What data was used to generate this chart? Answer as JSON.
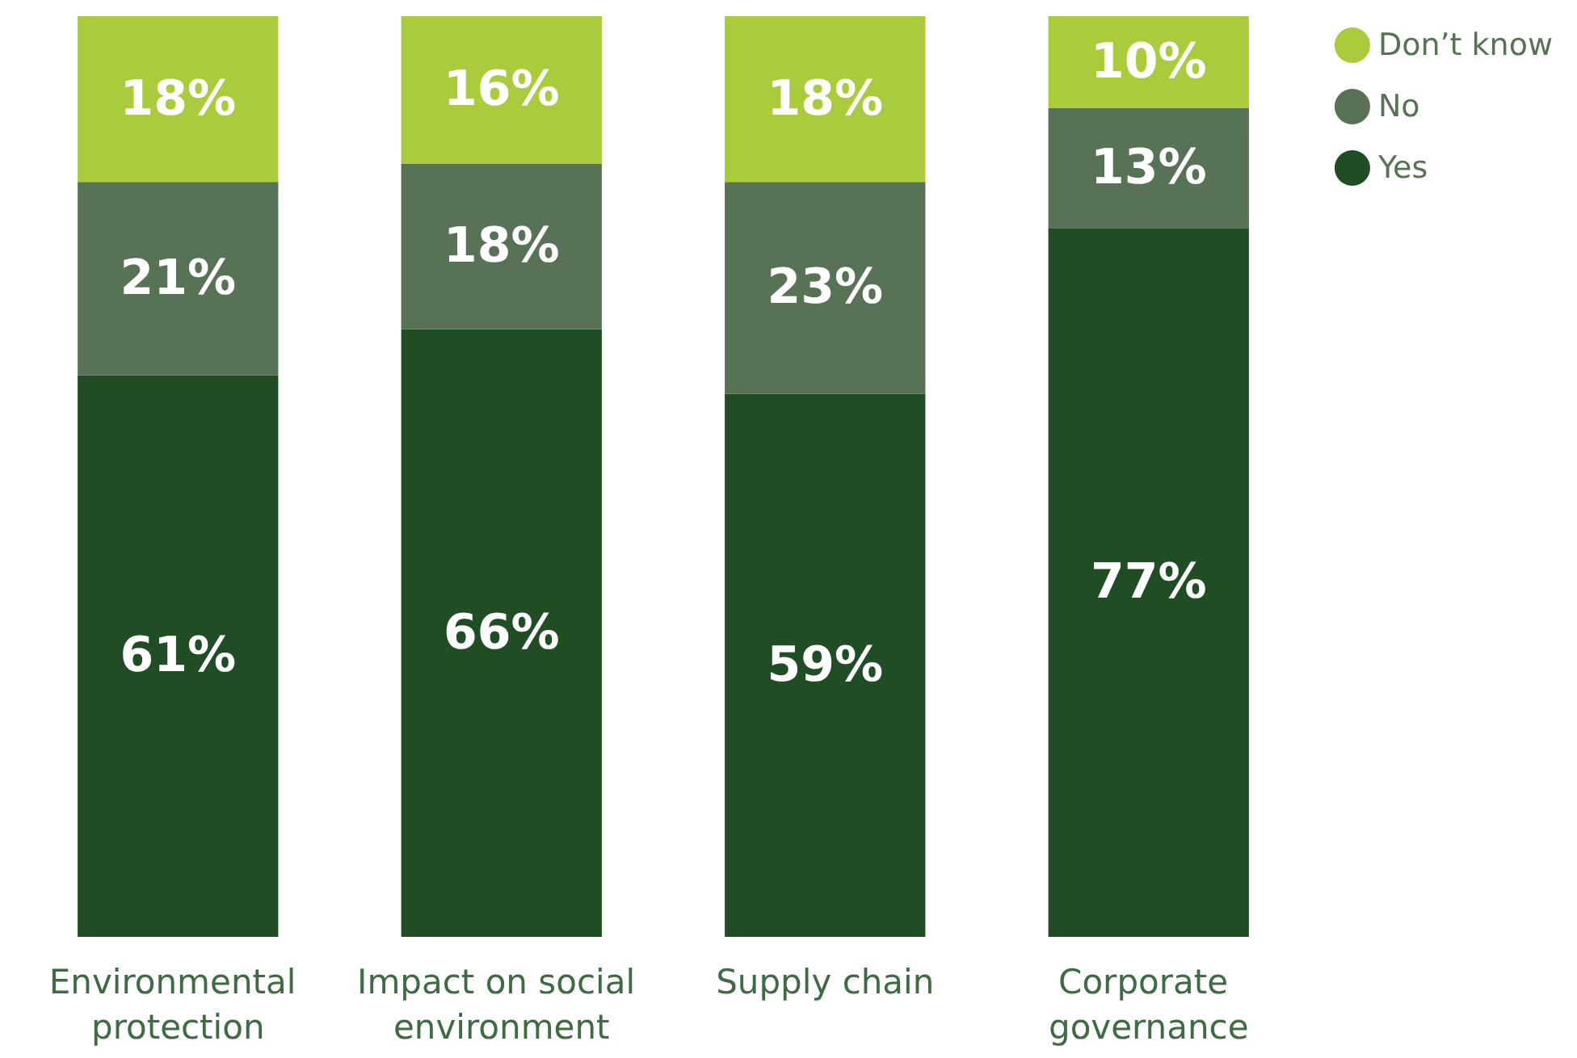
{
  "chart_data": {
    "type": "bar",
    "stacked": true,
    "categories": [
      "Environmental protection",
      "Impact on social environment",
      "Supply chain",
      "Corporate governance"
    ],
    "series": [
      {
        "name": "Yes",
        "color": "#204d24",
        "values": [
          61,
          66,
          59,
          77
        ],
        "value_labels": [
          "61%",
          "66%",
          "59%",
          "77%"
        ]
      },
      {
        "name": "No",
        "color": "#587255",
        "values": [
          21,
          18,
          23,
          13
        ],
        "value_labels": [
          "21%",
          "18%",
          "23%",
          "13%"
        ]
      },
      {
        "name": "Don’t know",
        "color": "#a9cb3c",
        "values": [
          18,
          16,
          18,
          10
        ],
        "value_labels": [
          "18%",
          "16%",
          "18%",
          "10%"
        ]
      }
    ],
    "legend": "top right",
    "marker": "circle"
  }
}
